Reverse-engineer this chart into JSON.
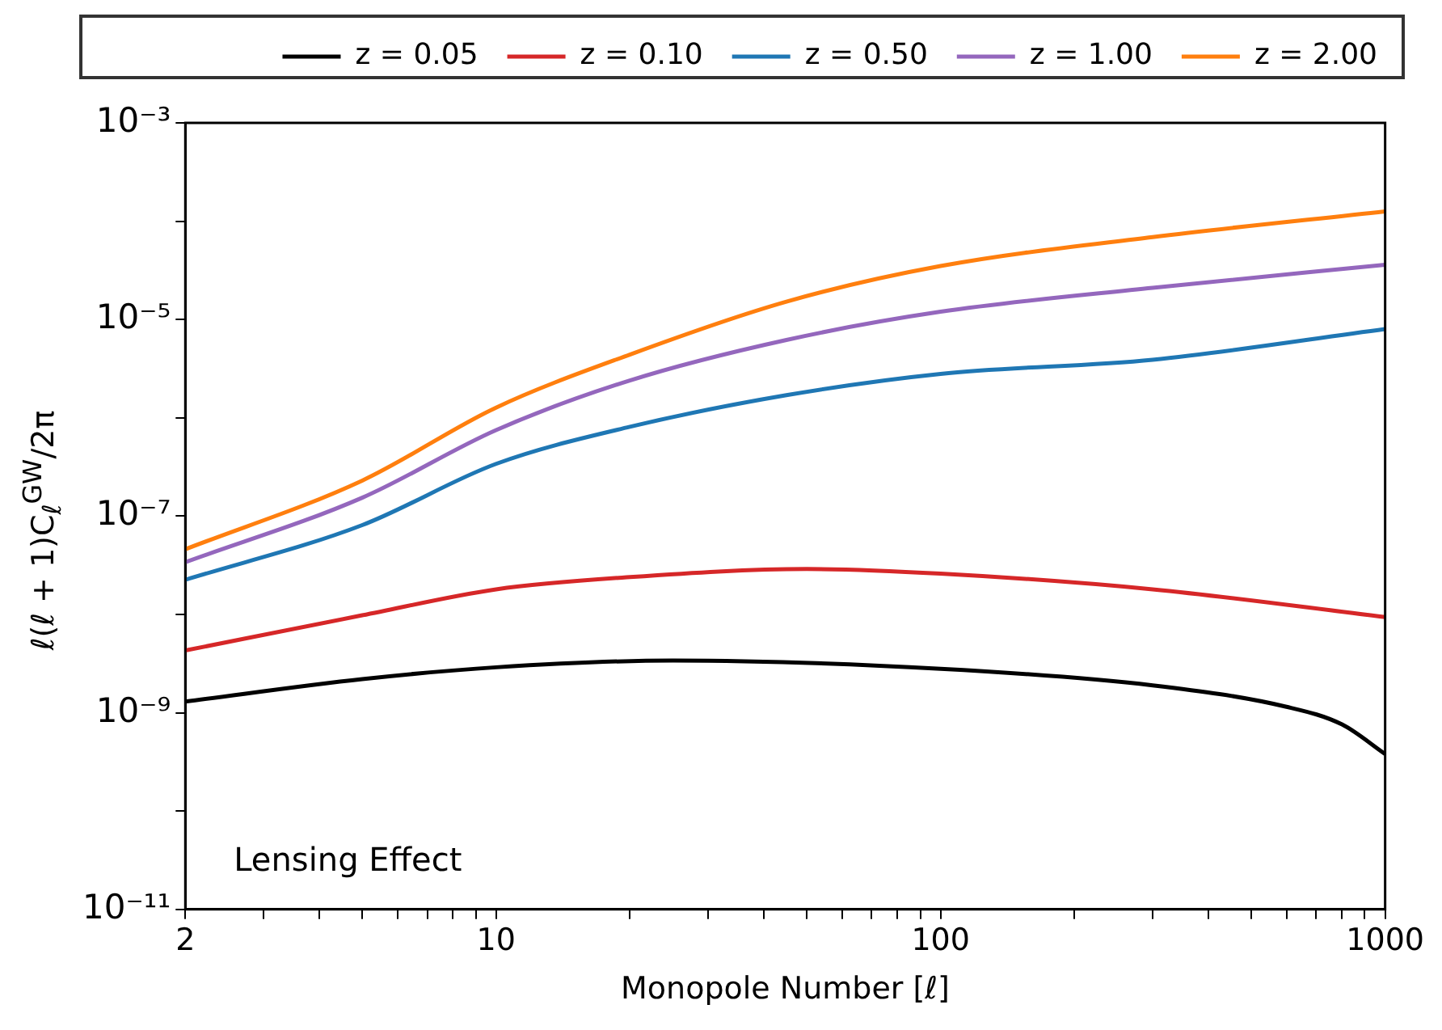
{
  "chart_data": {
    "type": "line",
    "xlabel": "Monopole Number [ℓ]",
    "ylabel": "ℓ(ℓ + 1)C$_{ℓ}$$^{GW}$/2π",
    "log": "xy",
    "grid": false,
    "legend": "top",
    "marker": "none",
    "line_style": "solid",
    "xlim": [
      2,
      1000
    ],
    "ylim": [
      1e-11,
      0.001
    ],
    "xticks": [
      2,
      {
        "value": 3,
        "label": null
      },
      {
        "value": 4,
        "label": null
      },
      {
        "value": 5,
        "label": null
      },
      {
        "value": 6,
        "label": null
      },
      {
        "value": 7,
        "label": null
      },
      {
        "value": 8,
        "label": null
      },
      {
        "value": 9,
        "label": null
      },
      10,
      {
        "value": 20,
        "label": null
      },
      {
        "value": 30,
        "label": null
      },
      {
        "value": 40,
        "label": null
      },
      {
        "value": 50,
        "label": null
      },
      {
        "value": 60,
        "label": null
      },
      {
        "value": 70,
        "label": null
      },
      {
        "value": 80,
        "label": null
      },
      {
        "value": 90,
        "label": null
      },
      100,
      {
        "value": 200,
        "label": null
      },
      {
        "value": 300,
        "label": null
      },
      {
        "value": 400,
        "label": null
      },
      {
        "value": 500,
        "label": null
      },
      {
        "value": 600,
        "label": null
      },
      {
        "value": 700,
        "label": null
      },
      {
        "value": 800,
        "label": null
      },
      {
        "value": 900,
        "label": null
      },
      1000
    ],
    "yticks": [
      {
        "value": 1e-11,
        "label": "10⁻¹¹"
      },
      {
        "value": 1e-10,
        "label": null
      },
      {
        "value": 1e-09,
        "label": "10⁻⁹"
      },
      {
        "value": 1e-08,
        "label": null
      },
      {
        "value": 1e-07,
        "label": "10⁻⁷"
      },
      {
        "value": 1e-06,
        "label": null
      },
      {
        "value": 1e-05,
        "label": "10⁻⁵"
      },
      {
        "value": 0.0001,
        "label": null
      },
      {
        "value": 0.001,
        "label": "10⁻³"
      }
    ],
    "series": [
      {
        "name": "z = 0.05",
        "color": "#000000",
        "x": [
          2,
          5,
          10,
          25,
          100,
          300,
          600,
          800,
          1000
        ],
        "values": [
          1.3e-09,
          2.2e-09,
          2.9e-09,
          3.4e-09,
          2.8e-09,
          1.9e-09,
          1.15e-09,
          7.6e-10,
          3.8e-10
        ]
      },
      {
        "name": "z = 0.10",
        "color": "#d62728",
        "x": [
          2,
          5,
          10,
          20,
          50,
          100,
          300,
          1000
        ],
        "values": [
          4.3e-09,
          9.8e-09,
          1.8e-08,
          2.4e-08,
          2.9e-08,
          2.6e-08,
          1.8e-08,
          9.4e-09
        ]
      },
      {
        "name": "z = 0.50",
        "color": "#1f77b4",
        "x": [
          2,
          5,
          10,
          20,
          45,
          100,
          300,
          1000
        ],
        "values": [
          2.25e-08,
          8.1e-08,
          3.4e-07,
          8.1e-07,
          1.7e-06,
          2.8e-06,
          3.9e-06,
          8e-06
        ]
      },
      {
        "name": "z = 1.00",
        "color": "#9467bd",
        "x": [
          2,
          5,
          10,
          20,
          45,
          100,
          300,
          1000
        ],
        "values": [
          3.4e-08,
          1.54e-07,
          7.5e-07,
          2.4e-06,
          6.2e-06,
          1.2e-05,
          2.1e-05,
          3.6e-05
        ]
      },
      {
        "name": "z = 2.00",
        "color": "#ff7f0e",
        "x": [
          2,
          5,
          10,
          20,
          45,
          100,
          300,
          1000
        ],
        "values": [
          4.6e-08,
          2.3e-07,
          1.27e-06,
          4.4e-06,
          1.52e-05,
          3.5e-05,
          6.9e-05,
          0.000126
        ]
      }
    ],
    "annotations": [
      "Lensing Effect"
    ]
  }
}
